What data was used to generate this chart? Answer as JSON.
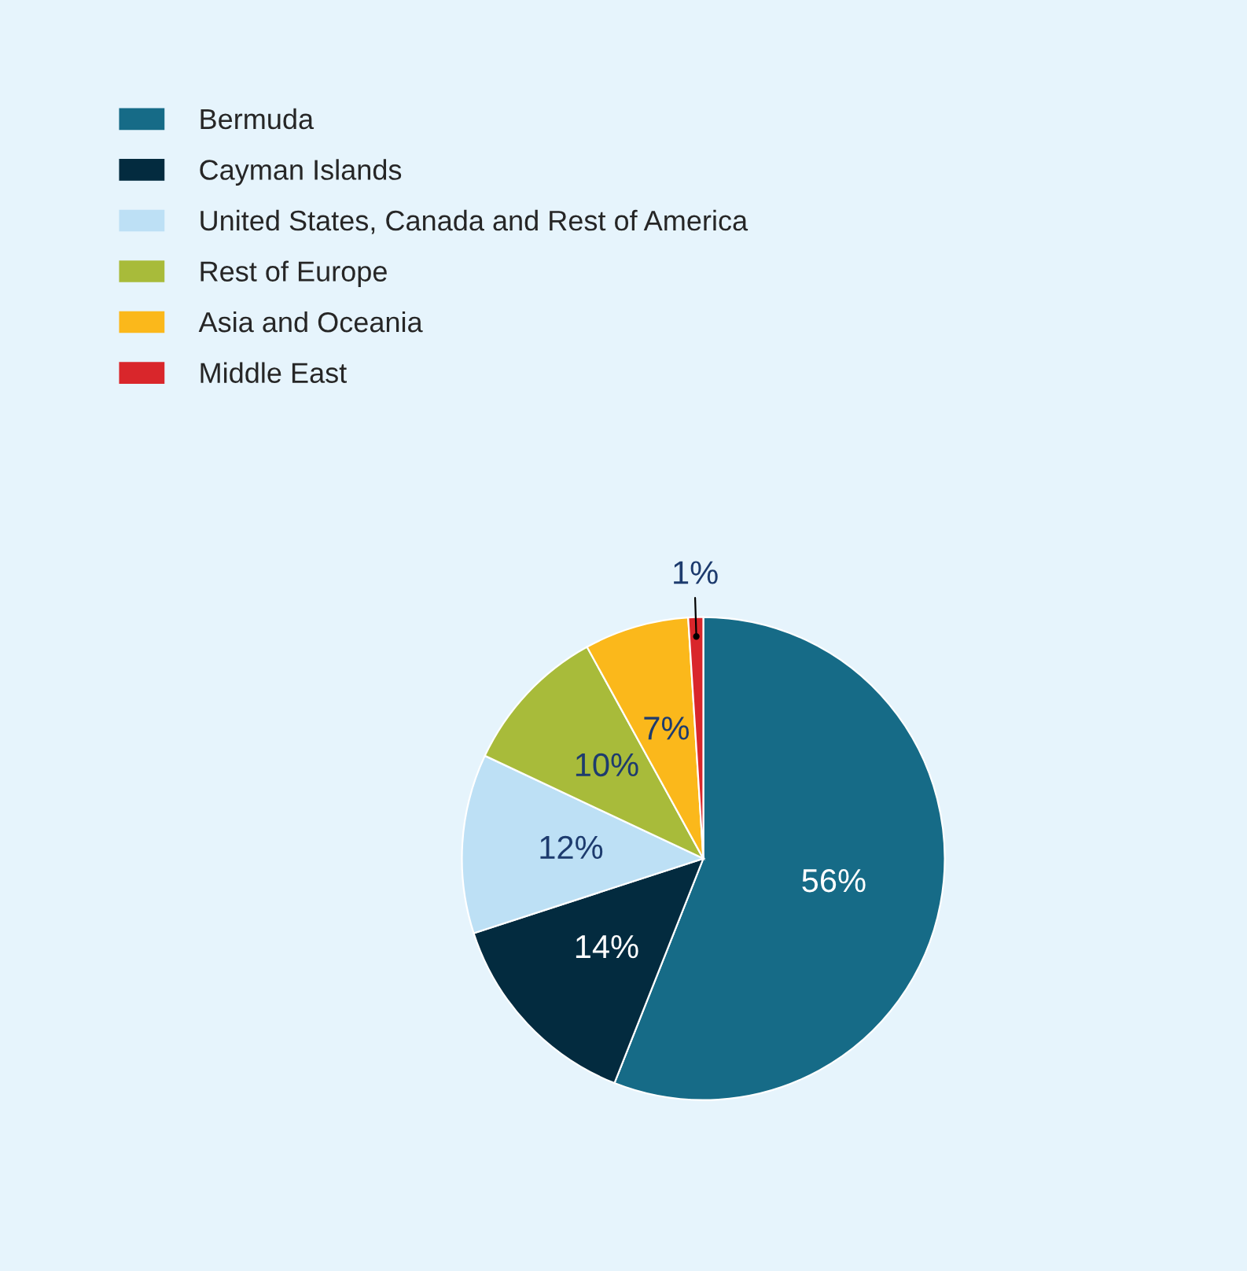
{
  "chart_data": {
    "type": "pie",
    "categories": [
      "Bermuda",
      "Cayman Islands",
      "United States, Canada and Rest of America",
      "Rest of Europe",
      "Asia and Oceania",
      "Middle East"
    ],
    "values": [
      56,
      14,
      12,
      10,
      7,
      1
    ],
    "colors": [
      "#166b87",
      "#032b3f",
      "#bde0f5",
      "#a8bb3a",
      "#fbb81b",
      "#d9262b"
    ],
    "value_labels": [
      "56%",
      "14%",
      "12%",
      "10%",
      "7%",
      "1%"
    ],
    "legend": "top left"
  }
}
